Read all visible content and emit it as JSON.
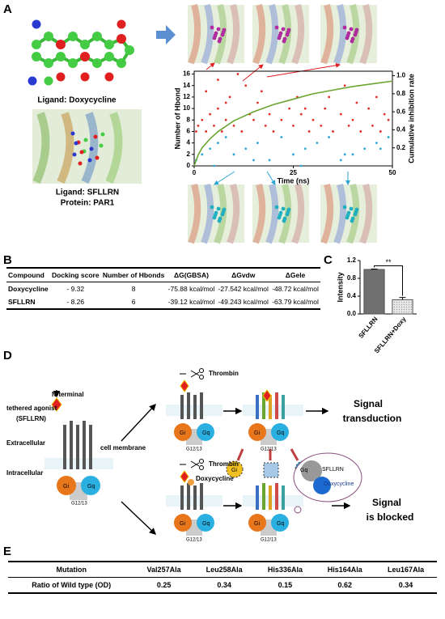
{
  "panel_labels": [
    "A",
    "B",
    "C",
    "D",
    "E"
  ],
  "panel_a": {
    "ligand_1": "Ligand: Doxycycline",
    "ligand_2": "Ligand: SFLLRN",
    "protein": "Protein: PAR1"
  },
  "chart_data": [
    {
      "type": "scatter",
      "xlabel": "Time (ns)",
      "ylabel": "Number of Hbond",
      "y2label": "Cumulative inhibition rate",
      "xlim": [
        0,
        50
      ],
      "xticks": [
        0,
        25,
        50
      ],
      "ylim": [
        0,
        16.5
      ],
      "yticks": [
        0,
        2,
        4,
        6,
        8,
        10,
        12,
        14,
        16
      ],
      "y2lim": [
        0,
        1.05
      ],
      "y2ticks": [
        0.2,
        0.4,
        0.6,
        0.8,
        {
          "value": 1,
          "label": "1.0"
        }
      ],
      "series": [
        {
          "color": "#e0302a",
          "x": [
            0.5,
            1,
            2,
            3,
            4,
            5,
            6,
            7,
            8,
            9,
            10,
            12,
            14,
            15,
            16,
            18,
            20,
            22,
            24,
            25,
            27,
            29,
            30,
            32,
            34,
            35,
            37,
            39,
            40,
            42,
            44,
            45,
            47,
            49,
            3,
            8,
            13,
            19,
            26,
            33,
            41,
            48,
            6,
            17,
            28,
            38,
            46,
            11
          ],
          "values": [
            6,
            7,
            8,
            6,
            9,
            7,
            10,
            6,
            8,
            12,
            7,
            6,
            9,
            8,
            11,
            7,
            6,
            8,
            10,
            7,
            9,
            6,
            8,
            7,
            12,
            6,
            9,
            7,
            8,
            6,
            10,
            7,
            6,
            8,
            13,
            11,
            14,
            9,
            12,
            10,
            11,
            9,
            15,
            13,
            10,
            14,
            12,
            16
          ]
        },
        {
          "color": "#2aa6d6",
          "x": [
            0.5,
            2,
            4,
            6,
            8,
            10,
            13,
            16,
            19,
            22,
            25,
            28,
            31,
            34,
            37,
            40,
            43,
            46,
            49,
            5,
            15,
            27,
            38,
            47
          ],
          "values": [
            1,
            2,
            3,
            4,
            5,
            2,
            3,
            4,
            1,
            5,
            2,
            3,
            4,
            5,
            1,
            2,
            3,
            4,
            5,
            0,
            1,
            0,
            2,
            3
          ]
        },
        {
          "type": "line",
          "axis": "y2",
          "color": "#6aa532",
          "x": [
            0,
            1,
            2,
            4,
            6,
            8,
            10,
            15,
            20,
            25,
            30,
            35,
            40,
            45,
            50
          ],
          "values": [
            0,
            0.12,
            0.2,
            0.3,
            0.38,
            0.44,
            0.5,
            0.6,
            0.68,
            0.74,
            0.8,
            0.84,
            0.88,
            0.91,
            0.94
          ]
        }
      ]
    },
    {
      "type": "bar",
      "ylabel": "Intensity",
      "annotation": "**",
      "categories": [
        "SFLLRN",
        "SFLLRN+Doxy"
      ],
      "values": [
        1.0,
        0.32
      ],
      "errors": [
        0.01,
        0.05
      ],
      "colors": [
        "#707070",
        "#d4d4d4"
      ],
      "ylim": [
        0,
        1.2
      ],
      "yticks": [
        {
          "value": 0,
          "label": "0.0"
        },
        0.4,
        0.8,
        1.2
      ]
    }
  ],
  "table_b": {
    "header": [
      "Compound",
      "Docking score",
      "Number of Hbonds",
      "ΔG(GBSA)",
      "ΔGvdw",
      "ΔGele"
    ],
    "rows": [
      [
        "Doxycycline",
        "- 9.32",
        "8",
        "-75.88 kcal/mol",
        "-27.542 kcal/mol",
        "-48.72 kcal/mol"
      ],
      [
        "SFLLRN",
        "- 8.26",
        "6",
        "-39.12 kcal/mol",
        "-49.243 kcal/mol",
        "-63.79 kcal/mol"
      ]
    ]
  },
  "panel_d": {
    "thrombin": "Thrombin",
    "n_terminal": "N-terminal",
    "tethered_agonist": "tethered agonist",
    "agonist_name": "(SFLLRN)",
    "extracellular": "Extracellular",
    "cell_membrane": "cell membrane",
    "intracellular": "Intracellular",
    "gi": "Gi",
    "gq": "Gq",
    "g1213": "G12/13",
    "doxycycline": "Doxycycline",
    "bubble_1": "SFLLRN",
    "bubble_2": "Doxycycline",
    "signal_1": [
      "Signal",
      "transduction"
    ],
    "signal_2": [
      "Signal",
      "is blocked"
    ]
  },
  "table_e": {
    "rows": [
      [
        "Mutation",
        "Val257Ala",
        "Leu258Ala",
        "His336Ala",
        "His164Ala",
        "Leu167Ala"
      ],
      [
        "Ratio of Wild type (OD)",
        0.25,
        0.34,
        0.15,
        0.62,
        0.34
      ]
    ]
  }
}
